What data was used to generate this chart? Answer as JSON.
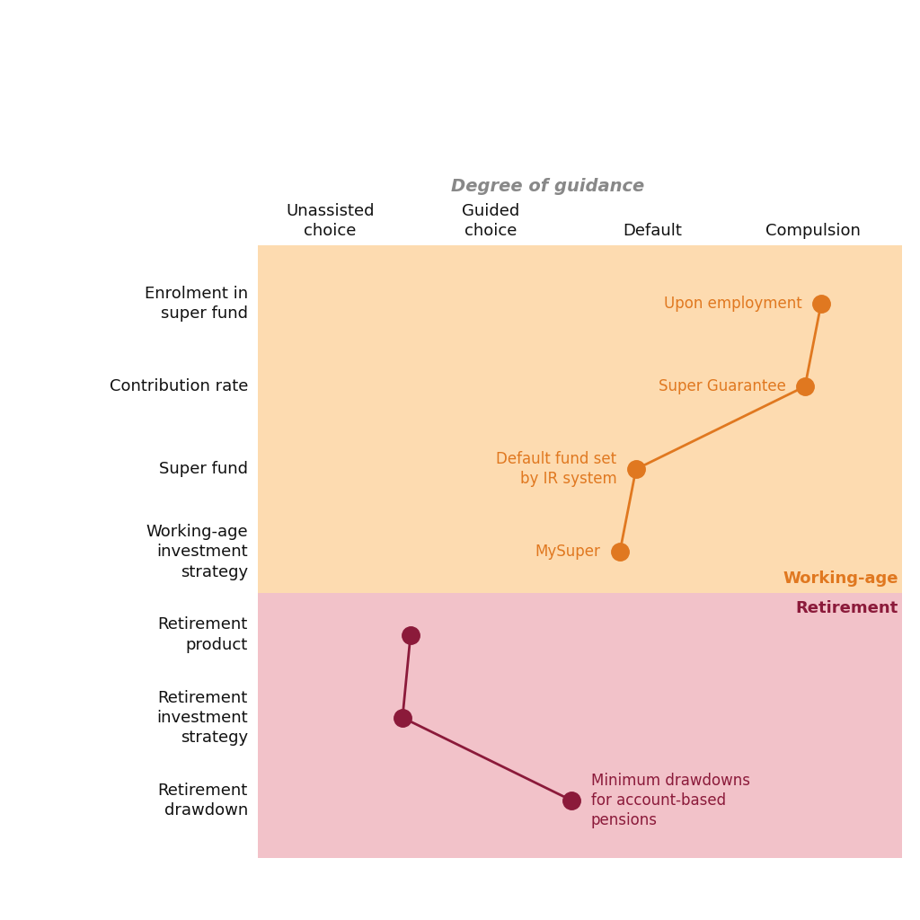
{
  "degree_of_guidance_label": "Degree of guidance",
  "x_labels": [
    "Unassisted\nchoice",
    "Guided\nchoice",
    "Default",
    "Compulsion"
  ],
  "x_positions": [
    1,
    2,
    3,
    4
  ],
  "y_labels": [
    "Enrolment in\nsuper fund",
    "Contribution rate",
    "Super fund",
    "Working-age\ninvestment\nstrategy",
    "Retirement\nproduct",
    "Retirement\ninvestment\nstrategy",
    "Retirement\ndrawdown"
  ],
  "y_positions": [
    7,
    6,
    5,
    4,
    3,
    2,
    1
  ],
  "working_age_boundary": 3.5,
  "working_age_color": "#FDDBB0",
  "retirement_color": "#F2C2C9",
  "orange_color": "#E07820",
  "dark_red_color": "#8B1A3A",
  "orange_points_x": [
    4.05,
    3.95,
    2.9,
    2.8
  ],
  "orange_points_y": [
    7,
    6,
    5,
    4
  ],
  "orange_labels": [
    "Upon employment",
    "Super Guarantee",
    "Default fund set\nby IR system",
    "MySuper"
  ],
  "dark_red_points_x": [
    1.5,
    1.45,
    2.5
  ],
  "dark_red_points_y": [
    3,
    2,
    1
  ],
  "dark_red_labels": [
    "",
    "",
    "Minimum drawdowns\nfor account-based\npensions"
  ],
  "axis_color": "#111111",
  "text_color": "#111111",
  "guidance_arrow_color": "#888888",
  "xlim_min": 0.55,
  "xlim_max": 4.55,
  "ylim_min": 0.3,
  "ylim_max": 7.7
}
